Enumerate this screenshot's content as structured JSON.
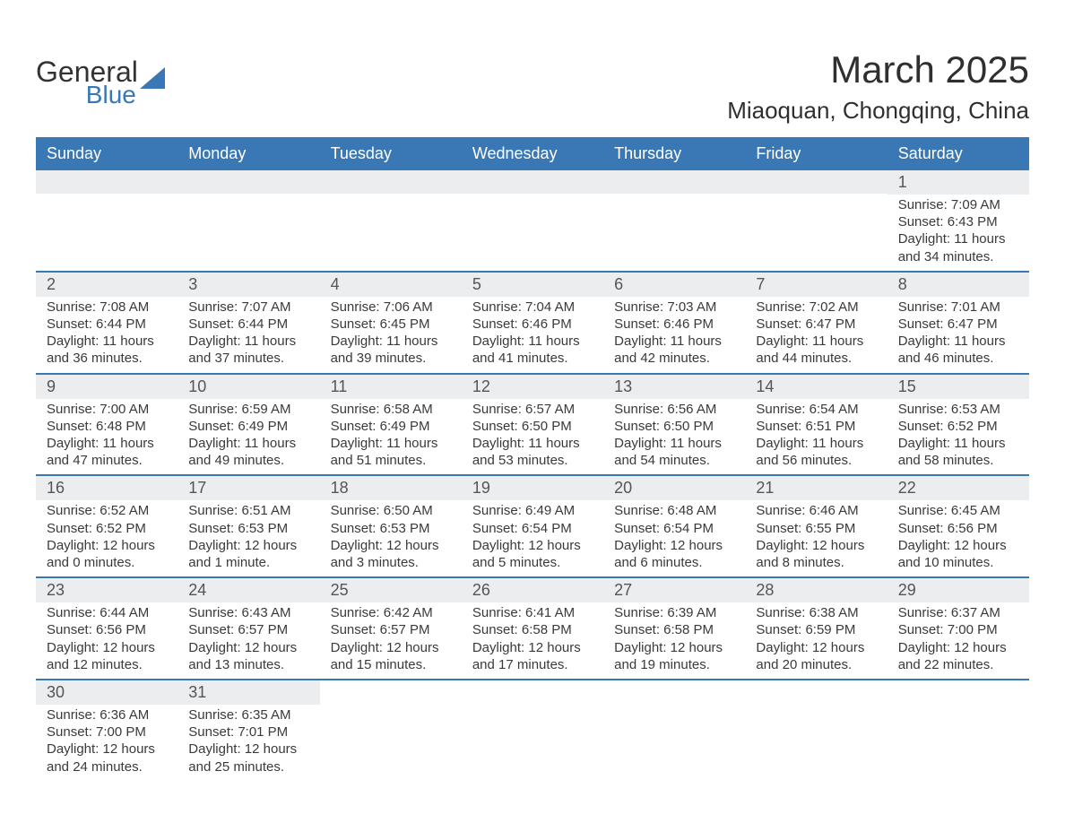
{
  "logo": {
    "word1": "General",
    "word2": "Blue"
  },
  "title": "March 2025",
  "subtitle": "Miaoquan, Chongqing, China",
  "colors": {
    "headerBg": "#3a78b5",
    "headerText": "#ffffff",
    "dayNumBg": "#ecedef",
    "borderRow": "#3a78b5",
    "bodyText": "#3a3a3a",
    "logoAccent": "#3a78b5"
  },
  "daysOfWeek": [
    "Sunday",
    "Monday",
    "Tuesday",
    "Wednesday",
    "Thursday",
    "Friday",
    "Saturday"
  ],
  "labels": {
    "sunrise": "Sunrise:",
    "sunset": "Sunset:",
    "daylight": "Daylight:"
  },
  "weeks": [
    [
      null,
      null,
      null,
      null,
      null,
      null,
      {
        "n": "1",
        "sr": "7:09 AM",
        "ss": "6:43 PM",
        "dl1": "11 hours",
        "dl2": "and 34 minutes."
      }
    ],
    [
      {
        "n": "2",
        "sr": "7:08 AM",
        "ss": "6:44 PM",
        "dl1": "11 hours",
        "dl2": "and 36 minutes."
      },
      {
        "n": "3",
        "sr": "7:07 AM",
        "ss": "6:44 PM",
        "dl1": "11 hours",
        "dl2": "and 37 minutes."
      },
      {
        "n": "4",
        "sr": "7:06 AM",
        "ss": "6:45 PM",
        "dl1": "11 hours",
        "dl2": "and 39 minutes."
      },
      {
        "n": "5",
        "sr": "7:04 AM",
        "ss": "6:46 PM",
        "dl1": "11 hours",
        "dl2": "and 41 minutes."
      },
      {
        "n": "6",
        "sr": "7:03 AM",
        "ss": "6:46 PM",
        "dl1": "11 hours",
        "dl2": "and 42 minutes."
      },
      {
        "n": "7",
        "sr": "7:02 AM",
        "ss": "6:47 PM",
        "dl1": "11 hours",
        "dl2": "and 44 minutes."
      },
      {
        "n": "8",
        "sr": "7:01 AM",
        "ss": "6:47 PM",
        "dl1": "11 hours",
        "dl2": "and 46 minutes."
      }
    ],
    [
      {
        "n": "9",
        "sr": "7:00 AM",
        "ss": "6:48 PM",
        "dl1": "11 hours",
        "dl2": "and 47 minutes."
      },
      {
        "n": "10",
        "sr": "6:59 AM",
        "ss": "6:49 PM",
        "dl1": "11 hours",
        "dl2": "and 49 minutes."
      },
      {
        "n": "11",
        "sr": "6:58 AM",
        "ss": "6:49 PM",
        "dl1": "11 hours",
        "dl2": "and 51 minutes."
      },
      {
        "n": "12",
        "sr": "6:57 AM",
        "ss": "6:50 PM",
        "dl1": "11 hours",
        "dl2": "and 53 minutes."
      },
      {
        "n": "13",
        "sr": "6:56 AM",
        "ss": "6:50 PM",
        "dl1": "11 hours",
        "dl2": "and 54 minutes."
      },
      {
        "n": "14",
        "sr": "6:54 AM",
        "ss": "6:51 PM",
        "dl1": "11 hours",
        "dl2": "and 56 minutes."
      },
      {
        "n": "15",
        "sr": "6:53 AM",
        "ss": "6:52 PM",
        "dl1": "11 hours",
        "dl2": "and 58 minutes."
      }
    ],
    [
      {
        "n": "16",
        "sr": "6:52 AM",
        "ss": "6:52 PM",
        "dl1": "12 hours",
        "dl2": "and 0 minutes."
      },
      {
        "n": "17",
        "sr": "6:51 AM",
        "ss": "6:53 PM",
        "dl1": "12 hours",
        "dl2": "and 1 minute."
      },
      {
        "n": "18",
        "sr": "6:50 AM",
        "ss": "6:53 PM",
        "dl1": "12 hours",
        "dl2": "and 3 minutes."
      },
      {
        "n": "19",
        "sr": "6:49 AM",
        "ss": "6:54 PM",
        "dl1": "12 hours",
        "dl2": "and 5 minutes."
      },
      {
        "n": "20",
        "sr": "6:48 AM",
        "ss": "6:54 PM",
        "dl1": "12 hours",
        "dl2": "and 6 minutes."
      },
      {
        "n": "21",
        "sr": "6:46 AM",
        "ss": "6:55 PM",
        "dl1": "12 hours",
        "dl2": "and 8 minutes."
      },
      {
        "n": "22",
        "sr": "6:45 AM",
        "ss": "6:56 PM",
        "dl1": "12 hours",
        "dl2": "and 10 minutes."
      }
    ],
    [
      {
        "n": "23",
        "sr": "6:44 AM",
        "ss": "6:56 PM",
        "dl1": "12 hours",
        "dl2": "and 12 minutes."
      },
      {
        "n": "24",
        "sr": "6:43 AM",
        "ss": "6:57 PM",
        "dl1": "12 hours",
        "dl2": "and 13 minutes."
      },
      {
        "n": "25",
        "sr": "6:42 AM",
        "ss": "6:57 PM",
        "dl1": "12 hours",
        "dl2": "and 15 minutes."
      },
      {
        "n": "26",
        "sr": "6:41 AM",
        "ss": "6:58 PM",
        "dl1": "12 hours",
        "dl2": "and 17 minutes."
      },
      {
        "n": "27",
        "sr": "6:39 AM",
        "ss": "6:58 PM",
        "dl1": "12 hours",
        "dl2": "and 19 minutes."
      },
      {
        "n": "28",
        "sr": "6:38 AM",
        "ss": "6:59 PM",
        "dl1": "12 hours",
        "dl2": "and 20 minutes."
      },
      {
        "n": "29",
        "sr": "6:37 AM",
        "ss": "7:00 PM",
        "dl1": "12 hours",
        "dl2": "and 22 minutes."
      }
    ],
    [
      {
        "n": "30",
        "sr": "6:36 AM",
        "ss": "7:00 PM",
        "dl1": "12 hours",
        "dl2": "and 24 minutes."
      },
      {
        "n": "31",
        "sr": "6:35 AM",
        "ss": "7:01 PM",
        "dl1": "12 hours",
        "dl2": "and 25 minutes."
      },
      null,
      null,
      null,
      null,
      null
    ]
  ]
}
